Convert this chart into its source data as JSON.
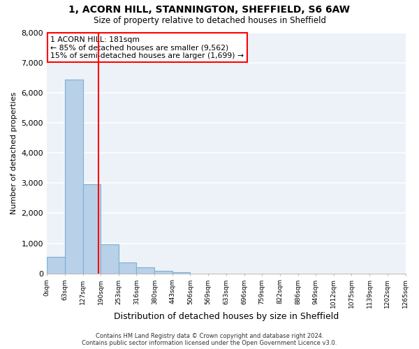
{
  "title": "1, ACORN HILL, STANNINGTON, SHEFFIELD, S6 6AW",
  "subtitle": "Size of property relative to detached houses in Sheffield",
  "xlabel": "Distribution of detached houses by size in Sheffield",
  "ylabel": "Number of detached properties",
  "bin_edges": [
    0,
    63,
    127,
    190,
    253,
    316,
    380,
    443,
    506,
    569,
    633,
    696,
    759,
    822,
    886,
    949,
    1012,
    1075,
    1139,
    1202,
    1265
  ],
  "bar_heights": [
    560,
    6430,
    2950,
    970,
    370,
    190,
    90,
    50,
    0,
    0,
    0,
    0,
    0,
    0,
    0,
    0,
    0,
    0,
    0,
    0
  ],
  "bar_color": "#b8d0e8",
  "bar_edge_color": "#7ab0d4",
  "vline_x": 181,
  "vline_color": "red",
  "ylim": [
    0,
    8000
  ],
  "yticks": [
    0,
    1000,
    2000,
    3000,
    4000,
    5000,
    6000,
    7000,
    8000
  ],
  "annotation_line1": "1 ACORN HILL: 181sqm",
  "annotation_line2": "← 85% of detached houses are smaller (9,562)",
  "annotation_line3": "15% of semi-detached houses are larger (1,699) →",
  "footer_text": "Contains HM Land Registry data © Crown copyright and database right 2024.\nContains public sector information licensed under the Open Government Licence v3.0.",
  "bg_color": "#edf2f9",
  "grid_color": "white",
  "tick_labels": [
    "0sqm",
    "63sqm",
    "127sqm",
    "190sqm",
    "253sqm",
    "316sqm",
    "380sqm",
    "443sqm",
    "506sqm",
    "569sqm",
    "633sqm",
    "696sqm",
    "759sqm",
    "822sqm",
    "886sqm",
    "949sqm",
    "1012sqm",
    "1075sqm",
    "1139sqm",
    "1202sqm",
    "1265sqm"
  ]
}
